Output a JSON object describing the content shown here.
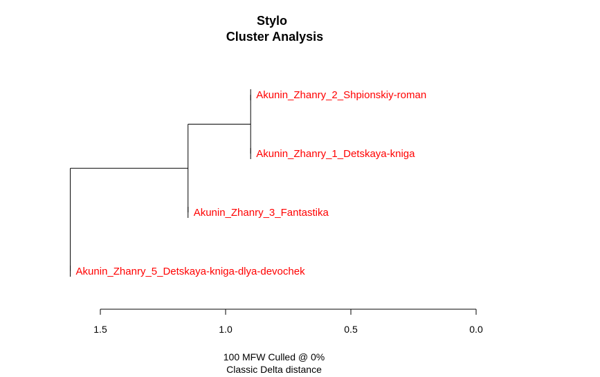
{
  "title": "Stylo",
  "subtitle": "Cluster Analysis",
  "caption_line1": "100 MFW  Culled @ 0%",
  "caption_line2": "Classic Delta distance",
  "colors": {
    "leaf_label": "#ff0000",
    "branch": "#000000",
    "axis": "#000000"
  },
  "chart_data": {
    "type": "dendrogram",
    "orientation": "horizontal",
    "x_axis": {
      "ticks": [
        1.5,
        1.0,
        0.5,
        0.0
      ],
      "tick_labels": [
        "1.5",
        "1.0",
        "0.5",
        "0.0"
      ],
      "range": [
        1.5,
        0.0
      ],
      "reversed": true
    },
    "leaves": [
      "Akunin_Zhanry_2_Shpionskiy-roman",
      "Akunin_Zhanry_1_Detskaya-kniga",
      "Akunin_Zhanry_3_Fantastika",
      "Akunin_Zhanry_5_Detskaya-kniga-dlya-devochek"
    ],
    "merges": [
      {
        "children": [
          "L0",
          "L1"
        ],
        "height": 0.9
      },
      {
        "children": [
          "M0",
          "L2"
        ],
        "height": 1.15
      },
      {
        "children": [
          "M1",
          "L3"
        ],
        "height": 1.62
      }
    ]
  }
}
